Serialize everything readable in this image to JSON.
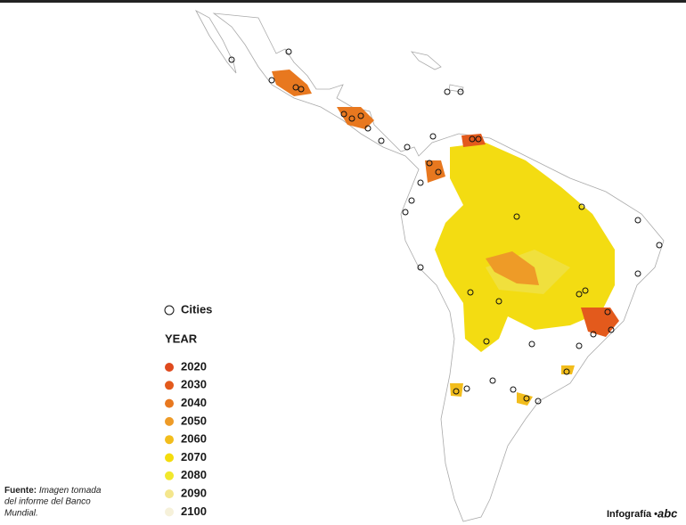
{
  "legend": {
    "cities": "Cities",
    "title": "YEAR",
    "items": [
      {
        "label": "2020",
        "color": "#df4a1e"
      },
      {
        "label": "2030",
        "color": "#e35a1c"
      },
      {
        "label": "2040",
        "color": "#e8781f"
      },
      {
        "label": "2050",
        "color": "#ee9b27"
      },
      {
        "label": "2060",
        "color": "#f2bd1c"
      },
      {
        "label": "2070",
        "color": "#f4dc0c"
      },
      {
        "label": "2080",
        "color": "#f1e82c"
      },
      {
        "label": "2090",
        "color": "#f4e68c"
      },
      {
        "label": "2100",
        "color": "#f6f1da"
      }
    ]
  },
  "source": {
    "label": "Fuente:",
    "lines": [
      "Imagen tomada",
      "del informe del Banco",
      "Mundial."
    ]
  },
  "credit": {
    "text": "Infografía •",
    "logo": "abc"
  }
}
